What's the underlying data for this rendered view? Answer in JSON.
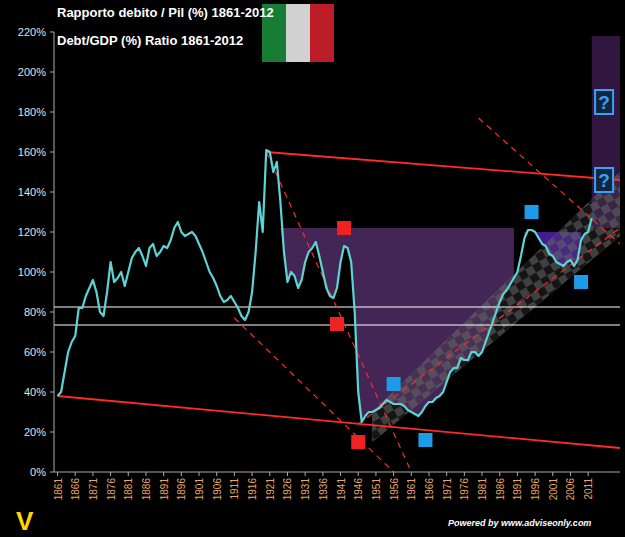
{
  "chart_data": {
    "type": "line",
    "title": "Rapporto debito / Pil (%) 1861-2012",
    "subtitle": "Debt/GDP (%) Ratio 1861-2012",
    "brand": "V",
    "footer": "Powered by www.adviseonly.com",
    "color": "#5fd3d3",
    "grid": false,
    "x": [
      1861,
      1862,
      1863,
      1864,
      1865,
      1866,
      1867,
      1868,
      1869,
      1870,
      1871,
      1872,
      1873,
      1874,
      1875,
      1876,
      1877,
      1878,
      1879,
      1880,
      1881,
      1882,
      1883,
      1884,
      1885,
      1886,
      1887,
      1888,
      1889,
      1890,
      1891,
      1892,
      1893,
      1894,
      1895,
      1896,
      1897,
      1898,
      1899,
      1900,
      1901,
      1902,
      1903,
      1904,
      1905,
      1906,
      1907,
      1908,
      1909,
      1910,
      1911,
      1912,
      1913,
      1914,
      1915,
      1916,
      1917,
      1918,
      1919,
      1920,
      1921,
      1922,
      1923,
      1924,
      1925,
      1926,
      1927,
      1928,
      1929,
      1930,
      1931,
      1932,
      1933,
      1934,
      1935,
      1936,
      1937,
      1938,
      1939,
      1940,
      1941,
      1942,
      1943,
      1944,
      1945,
      1946,
      1947,
      1948,
      1949,
      1950,
      1951,
      1952,
      1953,
      1954,
      1955,
      1956,
      1957,
      1958,
      1959,
      1960,
      1961,
      1962,
      1963,
      1964,
      1965,
      1966,
      1967,
      1968,
      1969,
      1970,
      1971,
      1972,
      1973,
      1974,
      1975,
      1976,
      1977,
      1978,
      1979,
      1980,
      1981,
      1982,
      1983,
      1984,
      1985,
      1986,
      1987,
      1988,
      1989,
      1990,
      1991,
      1992,
      1993,
      1994,
      1995,
      1996,
      1997,
      1998,
      1999,
      2000,
      2001,
      2002,
      2003,
      2004,
      2005,
      2006,
      2007,
      2008,
      2009,
      2010,
      2011,
      2012
    ],
    "values": [
      38,
      40,
      50,
      60,
      65,
      68,
      82,
      82,
      88,
      92,
      96,
      90,
      80,
      78,
      90,
      105,
      95,
      97,
      100,
      93,
      100,
      107,
      110,
      112,
      108,
      103,
      112,
      114,
      108,
      110,
      113,
      112,
      116,
      122,
      125,
      120,
      118,
      119,
      120,
      118,
      114,
      110,
      105,
      100,
      97,
      93,
      88,
      85,
      86,
      88,
      85,
      82,
      78,
      76,
      80,
      90,
      110,
      135,
      120,
      161,
      160,
      150,
      155,
      135,
      110,
      95,
      100,
      98,
      92,
      96,
      105,
      110,
      112,
      115,
      108,
      100,
      92,
      88,
      87,
      92,
      105,
      113,
      112,
      105,
      80,
      40,
      25,
      28,
      30,
      30,
      31,
      32,
      34,
      36,
      35,
      34,
      34,
      34,
      33,
      31,
      30,
      29,
      28,
      30,
      33,
      35,
      35,
      37,
      38,
      40,
      45,
      50,
      52,
      52,
      57,
      56,
      56,
      60,
      60,
      58,
      60,
      65,
      70,
      75,
      80,
      85,
      89,
      91,
      94,
      97,
      100,
      108,
      117,
      121,
      121,
      120,
      117,
      114,
      113,
      109,
      108,
      105,
      104,
      103,
      105,
      106,
      103,
      106,
      116,
      119,
      120,
      127
    ],
    "xlim": [
      1860,
      2020
    ],
    "ylim": [
      0,
      220
    ],
    "xticks": [
      1861,
      1866,
      1871,
      1876,
      1881,
      1886,
      1891,
      1896,
      1901,
      1906,
      1911,
      1916,
      1921,
      1926,
      1931,
      1936,
      1941,
      1946,
      1951,
      1956,
      1961,
      1966,
      1971,
      1976,
      1981,
      1986,
      1991,
      1996,
      2001,
      2006,
      2011
    ],
    "yticks": [
      {
        "value": 0,
        "label": "0%"
      },
      {
        "value": 20,
        "label": "20%"
      },
      {
        "value": 40,
        "label": "40%"
      },
      {
        "value": 60,
        "label": "60%"
      },
      {
        "value": 80,
        "label": "80%"
      },
      {
        "value": 100,
        "label": "100%"
      },
      {
        "value": 120,
        "label": "120%"
      },
      {
        "value": 140,
        "label": "140%"
      },
      {
        "value": 160,
        "label": "160%"
      },
      {
        "value": 180,
        "label": "180%"
      },
      {
        "value": 200,
        "label": "200%"
      },
      {
        "value": 220,
        "label": "220%"
      }
    ],
    "shaded": [
      {
        "x": [
          1924,
          1990
        ],
        "top": 122,
        "color": "#4a2a5e"
      },
      {
        "x": [
          1993,
          2009
        ],
        "top": 120,
        "color": "#4b1fa0"
      }
    ],
    "bands": [
      {
        "x": [
          2012,
          2020
        ],
        "y": [
          122,
          218
        ],
        "color": "#3a1a4a"
      }
    ],
    "channel": {
      "x": [
        1950,
        2020
      ],
      "upper": [
        30,
        150
      ],
      "lower": [
        15,
        118
      ],
      "color": "#555555"
    },
    "reference_lines": [
      82.5,
      73.5
    ],
    "lines": [
      {
        "x": [
          1920,
          2020
        ],
        "y": [
          160,
          146
        ],
        "color": "#ff2a2a",
        "line_style": "solid"
      },
      {
        "x": [
          1861,
          2020
        ],
        "y": [
          38,
          12
        ],
        "color": "#ff2a2a",
        "line_style": "solid"
      },
      {
        "x": [
          1920,
          1961
        ],
        "y": [
          160,
          0
        ],
        "color": "#ff2a2a",
        "line_style": "dashed"
      },
      {
        "x": [
          1911,
          1956
        ],
        "y": [
          77,
          0
        ],
        "color": "#ff2a2a",
        "line_style": "dashed"
      },
      {
        "x": [
          1980,
          2020
        ],
        "y": [
          177,
          114
        ],
        "color": "#ff2a2a",
        "line_style": "dashed"
      },
      {
        "x": [
          1946,
          2020
        ],
        "y": [
          24,
          122
        ],
        "color": "#ff2a2a",
        "line_style": "dashed"
      }
    ],
    "markers": [
      {
        "x": 1942,
        "y": 122,
        "color": "#ee2222"
      },
      {
        "x": 1940,
        "y": 74,
        "color": "#ee2222"
      },
      {
        "x": 1946,
        "y": 15,
        "color": "#ee2222"
      },
      {
        "x": 1956,
        "y": 44,
        "color": "#1e9be8"
      },
      {
        "x": 1965,
        "y": 16,
        "color": "#1e9be8"
      },
      {
        "x": 1995,
        "y": 130,
        "color": "#1e9be8"
      },
      {
        "x": 2009,
        "y": 95,
        "color": "#1e9be8"
      }
    ],
    "question_boxes": [
      {
        "x": 2015.5,
        "y": 185,
        "label": "?"
      },
      {
        "x": 2015.5,
        "y": 146,
        "label": "?"
      }
    ]
  }
}
